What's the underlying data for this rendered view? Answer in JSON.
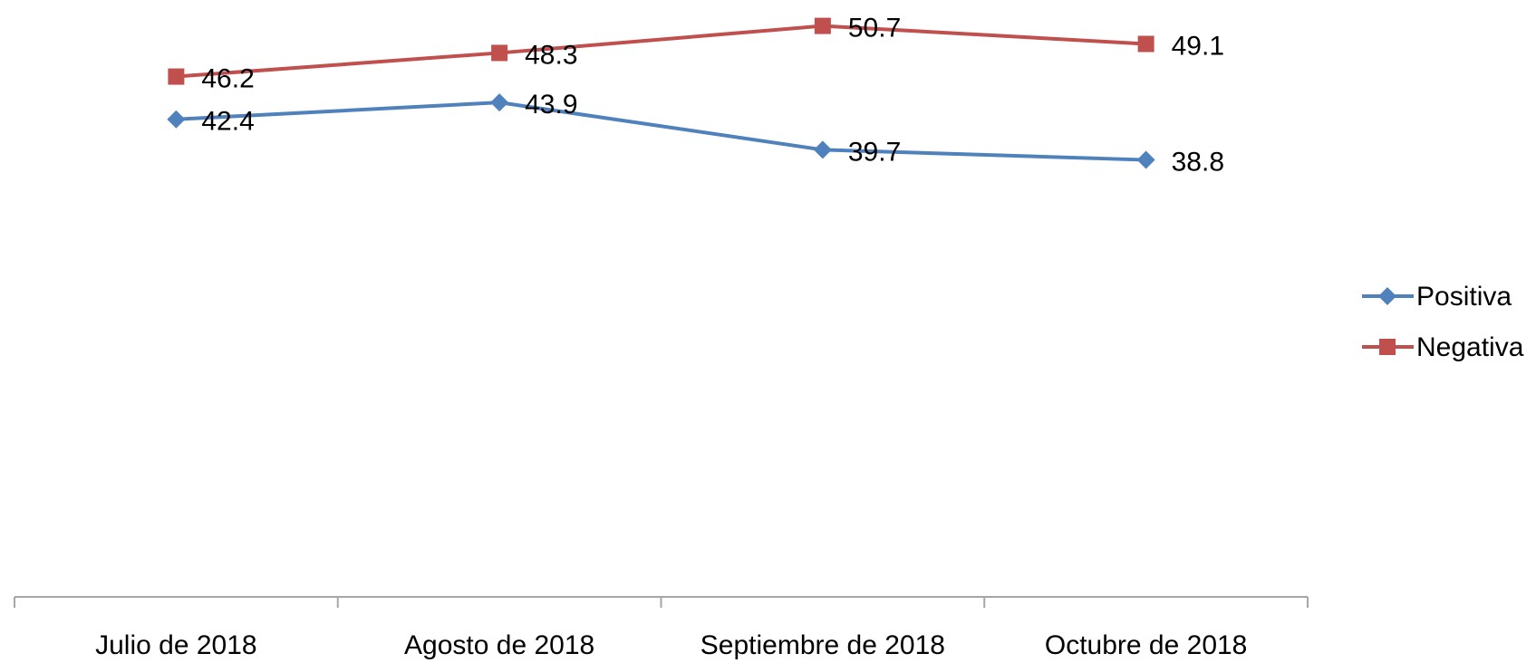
{
  "chart_data": {
    "type": "line",
    "categories": [
      "Julio de 2018",
      "Agosto de 2018",
      "Septiembre de 2018",
      "Octubre de 2018"
    ],
    "series": [
      {
        "name": "Positiva",
        "color": "#4f81bd",
        "marker": "diamond",
        "values": [
          42.4,
          43.9,
          39.7,
          38.8
        ]
      },
      {
        "name": "Negativa",
        "color": "#c0504d",
        "marker": "square",
        "values": [
          46.2,
          48.3,
          50.7,
          49.1
        ]
      }
    ],
    "ylim": [
      0,
      53
    ],
    "legend": "right"
  }
}
